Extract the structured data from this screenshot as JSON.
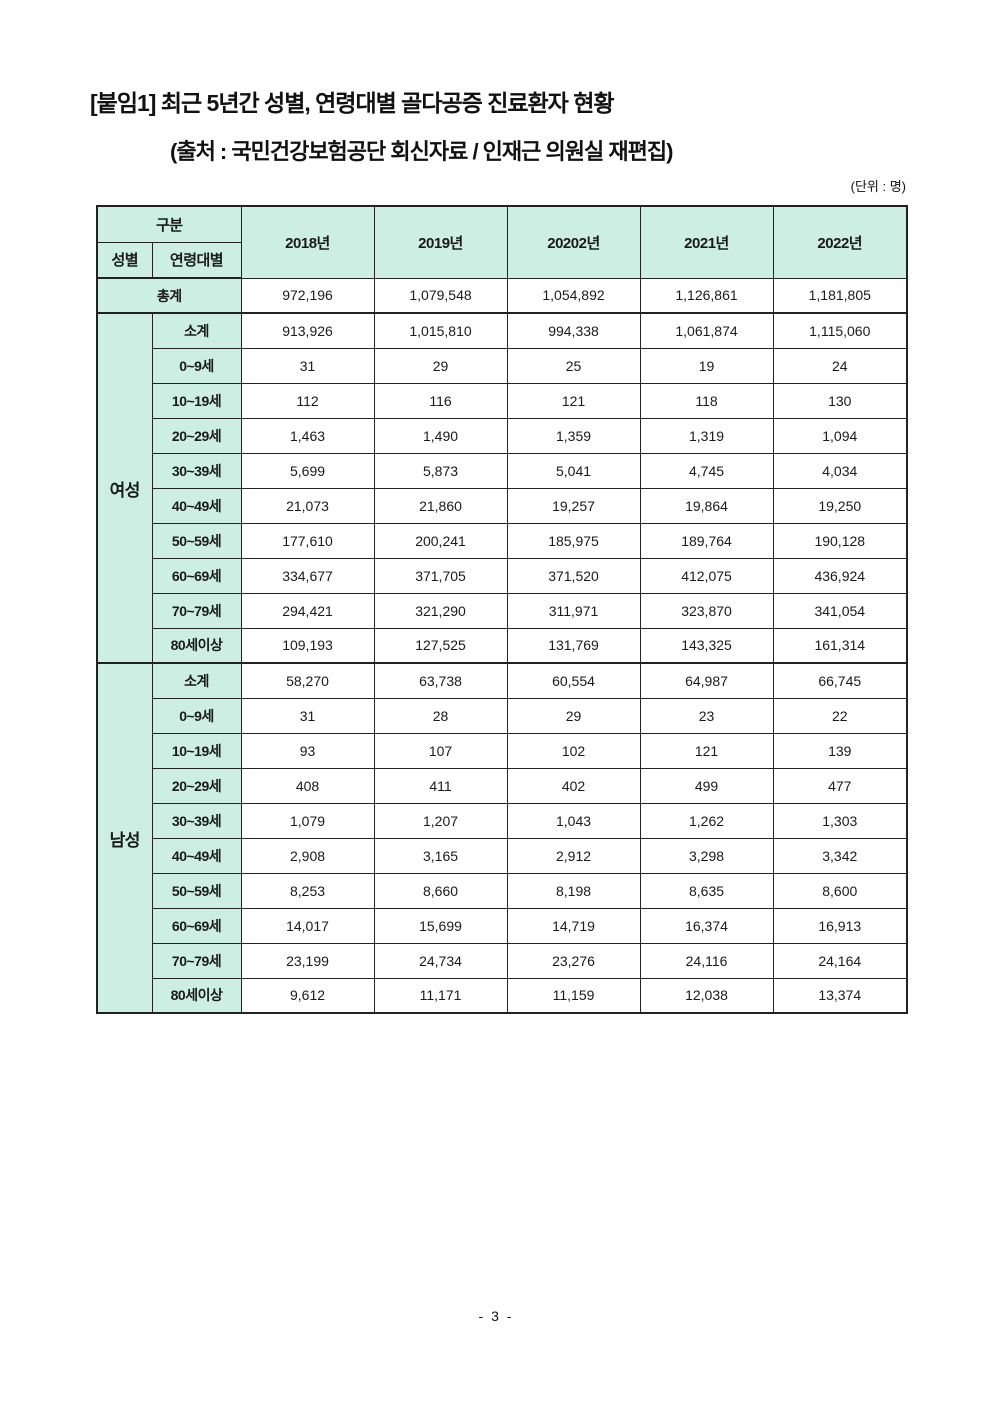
{
  "page": {
    "title": "[붙임1] 최근 5년간 성별, 연령대별 골다공증 진료환자 현황",
    "source": "(출처 : 국민건강보험공단 회신자료 / 인재근 의원실 재편집)",
    "unit": "(단위 : 명)",
    "page_number": "- 3 -"
  },
  "colors": {
    "header_bg": "#cdeee3",
    "border": "#222222",
    "text": "#1a1a1a"
  },
  "table": {
    "corner_label": "구분",
    "gender_header": "성별",
    "age_header": "연령대별",
    "years": [
      "2018년",
      "2019년",
      "20202년",
      "2021년",
      "2022년"
    ],
    "total": {
      "label": "총계",
      "values": [
        "972,196",
        "1,079,548",
        "1,054,892",
        "1,126,861",
        "1,181,805"
      ]
    },
    "sections": [
      {
        "gender": "여성",
        "rows": [
          {
            "label": "소계",
            "values": [
              "913,926",
              "1,015,810",
              "994,338",
              "1,061,874",
              "1,115,060"
            ]
          },
          {
            "label": "0~9세",
            "values": [
              "31",
              "29",
              "25",
              "19",
              "24"
            ]
          },
          {
            "label": "10~19세",
            "values": [
              "112",
              "116",
              "121",
              "118",
              "130"
            ]
          },
          {
            "label": "20~29세",
            "values": [
              "1,463",
              "1,490",
              "1,359",
              "1,319",
              "1,094"
            ]
          },
          {
            "label": "30~39세",
            "values": [
              "5,699",
              "5,873",
              "5,041",
              "4,745",
              "4,034"
            ]
          },
          {
            "label": "40~49세",
            "values": [
              "21,073",
              "21,860",
              "19,257",
              "19,864",
              "19,250"
            ]
          },
          {
            "label": "50~59세",
            "values": [
              "177,610",
              "200,241",
              "185,975",
              "189,764",
              "190,128"
            ]
          },
          {
            "label": "60~69세",
            "values": [
              "334,677",
              "371,705",
              "371,520",
              "412,075",
              "436,924"
            ]
          },
          {
            "label": "70~79세",
            "values": [
              "294,421",
              "321,290",
              "311,971",
              "323,870",
              "341,054"
            ]
          },
          {
            "label": "80세이상",
            "values": [
              "109,193",
              "127,525",
              "131,769",
              "143,325",
              "161,314"
            ]
          }
        ]
      },
      {
        "gender": "남성",
        "rows": [
          {
            "label": "소계",
            "values": [
              "58,270",
              "63,738",
              "60,554",
              "64,987",
              "66,745"
            ]
          },
          {
            "label": "0~9세",
            "values": [
              "31",
              "28",
              "29",
              "23",
              "22"
            ]
          },
          {
            "label": "10~19세",
            "values": [
              "93",
              "107",
              "102",
              "121",
              "139"
            ]
          },
          {
            "label": "20~29세",
            "values": [
              "408",
              "411",
              "402",
              "499",
              "477"
            ]
          },
          {
            "label": "30~39세",
            "values": [
              "1,079",
              "1,207",
              "1,043",
              "1,262",
              "1,303"
            ]
          },
          {
            "label": "40~49세",
            "values": [
              "2,908",
              "3,165",
              "2,912",
              "3,298",
              "3,342"
            ]
          },
          {
            "label": "50~59세",
            "values": [
              "8,253",
              "8,660",
              "8,198",
              "8,635",
              "8,600"
            ]
          },
          {
            "label": "60~69세",
            "values": [
              "14,017",
              "15,699",
              "14,719",
              "16,374",
              "16,913"
            ]
          },
          {
            "label": "70~79세",
            "values": [
              "23,199",
              "24,734",
              "23,276",
              "24,116",
              "24,164"
            ]
          },
          {
            "label": "80세이상",
            "values": [
              "9,612",
              "11,171",
              "11,159",
              "12,038",
              "13,374"
            ]
          }
        ]
      }
    ]
  }
}
